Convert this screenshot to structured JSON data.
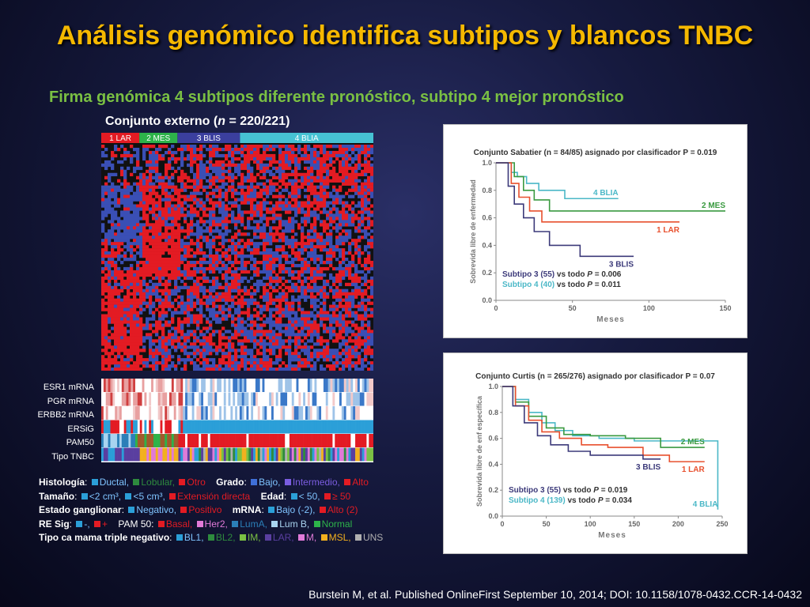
{
  "slide": {
    "title": "Análisis genómico identifica subtipos y blancos TNBC",
    "subtitle": "Firma  genómica 4 subtipos diferente pronóstico, subtipo 4 mejor pronóstico",
    "conjunto_prefix": "Conjunto externo (",
    "conjunto_n": "n",
    "conjunto_suffix": " = 220/221)",
    "citation": "Burstein  M, et al. Published OnlineFirst September 10, 2014; DOI: 10.1158/1078-0432.CCR-14-0432"
  },
  "heatmap": {
    "groups": [
      {
        "label": "1 LAR",
        "color": "#e31b23",
        "fraction": 0.14
      },
      {
        "label": "2 MES",
        "color": "#2db34a",
        "fraction": 0.14
      },
      {
        "label": "3 BLIS",
        "color": "#3b3f9e",
        "fraction": 0.23
      },
      {
        "label": "4 BLIA",
        "color": "#46c2d3",
        "fraction": 0.49
      }
    ],
    "colors": {
      "high": "#e31b23",
      "low": "#3a4fb5",
      "neutral": "#111111"
    },
    "tracks": [
      "ESR1 mRNA",
      "PGR mRNA",
      "ERBB2 mRNA",
      "ERSiG",
      "PAM50",
      "Tipo TNBC"
    ]
  },
  "legend": {
    "histologia": {
      "title": "Histología",
      "items": [
        {
          "label": "Ductal",
          "color": "#2b9fd8"
        },
        {
          "label": "Lobular",
          "color": "#2e8b3e"
        },
        {
          "label": "Otro",
          "color": "#e31b23"
        }
      ]
    },
    "grado": {
      "title": "Grado",
      "items": [
        {
          "label": "Bajo",
          "color": "#3f6fd8"
        },
        {
          "label": "Intermedio",
          "color": "#7b5de0"
        },
        {
          "label": "Alto",
          "color": "#e31b23"
        }
      ]
    },
    "tamano": {
      "title": "Tamaño",
      "items": [
        {
          "label": "<2 cm³",
          "color": "#2b9fd8"
        },
        {
          "label": "<5 cm³",
          "color": "#2b9fd8"
        },
        {
          "label": "Extensión directa",
          "color": "#e31b23"
        }
      ]
    },
    "edad": {
      "title": "Edad",
      "items": [
        {
          "label": "< 50",
          "color": "#2b9fd8"
        },
        {
          "label": "≥ 50",
          "color": "#e31b23"
        }
      ]
    },
    "ganglionar": {
      "title": "Estado ganglionar",
      "items": [
        {
          "label": "Negativo",
          "color": "#2b9fd8"
        },
        {
          "label": "Positivo",
          "color": "#e31b23"
        }
      ]
    },
    "mrna": {
      "title": "mRNA",
      "items": [
        {
          "label": "Bajo (-2)",
          "color": "#2b9fd8"
        },
        {
          "label": "Alto (2)",
          "color": "#e31b23"
        }
      ]
    },
    "resig": {
      "title": "RE Sig",
      "items": [
        {
          "label": "-",
          "color": "#2b9fd8"
        },
        {
          "label": "+",
          "color": "#e31b23"
        }
      ]
    },
    "pam50": {
      "title": "PAM 50",
      "items": [
        {
          "label": "Basal",
          "color": "#e31b23"
        },
        {
          "label": "Her2",
          "color": "#e07ad8"
        },
        {
          "label": "LumA",
          "color": "#2b7fb8"
        },
        {
          "label": "Lum B",
          "color": "#a9d4f0"
        },
        {
          "label": "Normal",
          "color": "#2db34a"
        }
      ]
    },
    "tipo": {
      "title": "Tipo ca mama triple negativo",
      "items": [
        {
          "label": "BL1",
          "color": "#2b9fd8"
        },
        {
          "label": "BL2",
          "color": "#2e8b3e"
        },
        {
          "label": "IM",
          "color": "#7ac043"
        },
        {
          "label": "LAR",
          "color": "#5a3fa0"
        },
        {
          "label": "M",
          "color": "#e07ad8"
        },
        {
          "label": "MSL",
          "color": "#f2b01e"
        },
        {
          "label": "UNS",
          "color": "#b0b0b0"
        }
      ]
    }
  },
  "chart_data": [
    {
      "type": "line",
      "title": "Conjunto Sabatier (n =  84/85) asignado por clasificador P = 0.019",
      "xlabel": "Meses",
      "ylabel": "Sobrevida libre de enfermedad",
      "xlim": [
        0,
        150
      ],
      "ylim": [
        0.0,
        1.0
      ],
      "xticks": [
        0,
        50,
        100,
        150
      ],
      "yticks": [
        0.0,
        0.2,
        0.4,
        0.6,
        0.8,
        1.0
      ],
      "series": [
        {
          "name": "4 BLIA",
          "color": "#4bb8c7",
          "x": [
            0,
            10,
            14,
            20,
            28,
            45,
            80
          ],
          "y": [
            1.0,
            0.93,
            0.9,
            0.85,
            0.8,
            0.74,
            0.74
          ]
        },
        {
          "name": "2 MES",
          "color": "#3a9a40",
          "x": [
            0,
            12,
            18,
            25,
            35,
            50,
            150
          ],
          "y": [
            1.0,
            0.9,
            0.8,
            0.73,
            0.65,
            0.65,
            0.65
          ]
        },
        {
          "name": "1 LAR",
          "color": "#e8502e",
          "x": [
            0,
            10,
            15,
            22,
            30,
            120
          ],
          "y": [
            1.0,
            0.85,
            0.75,
            0.65,
            0.57,
            0.57
          ]
        },
        {
          "name": "3 BLIS",
          "color": "#3c3a7a",
          "x": [
            0,
            8,
            12,
            18,
            25,
            35,
            55,
            90
          ],
          "y": [
            1.0,
            0.83,
            0.7,
            0.6,
            0.5,
            0.4,
            0.32,
            0.32
          ]
        }
      ],
      "annotations": [
        {
          "prefix": "Subtipo 3 (55)",
          "middle": " vs todo ",
          "p": "P",
          "suffix": " = 0.006",
          "color": "#3c3a7a"
        },
        {
          "prefix": "Subtipo 4 (40)",
          "middle": " vs todo ",
          "p": "P",
          "suffix": " = 0.011",
          "color": "#4bb8c7"
        }
      ]
    },
    {
      "type": "line",
      "title": "Conjunto Curtis (n =  265/276) asignado por clasificador P = 0.07",
      "xlabel": "Meses",
      "ylabel": "Sobrevida libre de enf específica",
      "xlim": [
        0,
        250
      ],
      "ylim": [
        0.0,
        1.0
      ],
      "xticks": [
        0,
        50,
        100,
        150,
        200,
        250
      ],
      "yticks": [
        0.0,
        0.2,
        0.4,
        0.6,
        0.8,
        1.0
      ],
      "series": [
        {
          "name": "4 BLIA",
          "color": "#4bb8c7",
          "x": [
            0,
            15,
            30,
            45,
            60,
            80,
            110,
            150,
            200,
            240,
            245
          ],
          "y": [
            1.0,
            0.9,
            0.8,
            0.72,
            0.66,
            0.62,
            0.6,
            0.58,
            0.58,
            0.58,
            0.05
          ]
        },
        {
          "name": "2 MES",
          "color": "#3a9a40",
          "x": [
            0,
            15,
            30,
            50,
            70,
            100,
            140,
            180,
            230
          ],
          "y": [
            1.0,
            0.88,
            0.77,
            0.68,
            0.63,
            0.62,
            0.6,
            0.53,
            0.53
          ]
        },
        {
          "name": "1 LAR",
          "color": "#e8502e",
          "x": [
            0,
            15,
            30,
            45,
            65,
            90,
            120,
            160,
            190,
            230
          ],
          "y": [
            1.0,
            0.85,
            0.74,
            0.65,
            0.6,
            0.55,
            0.53,
            0.47,
            0.42,
            0.42
          ]
        },
        {
          "name": "3 BLIS",
          "color": "#3c3a7a",
          "x": [
            0,
            12,
            25,
            40,
            55,
            75,
            100,
            130,
            160,
            180
          ],
          "y": [
            1.0,
            0.85,
            0.72,
            0.62,
            0.55,
            0.5,
            0.47,
            0.47,
            0.44,
            0.44
          ]
        }
      ],
      "annotations": [
        {
          "prefix": "Subtipo 3 (55)",
          "middle": " vs todo ",
          "p": "P",
          "suffix": " = 0.019",
          "color": "#3c3a7a"
        },
        {
          "prefix": "Subtipo 4 (139)",
          "middle": " vs todo ",
          "p": "P",
          "suffix": " = 0.034",
          "color": "#4bb8c7"
        }
      ]
    }
  ]
}
